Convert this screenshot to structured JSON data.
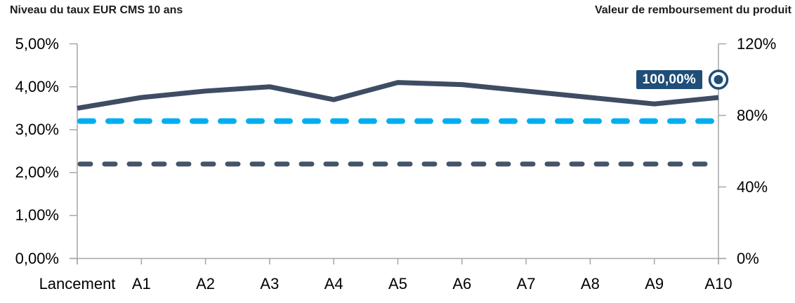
{
  "titles": {
    "left": "Niveau du taux EUR CMS 10 ans",
    "right": "Valeur de remboursement du produit"
  },
  "chart_data": {
    "type": "line",
    "categories": [
      "Lancement",
      "A1",
      "A2",
      "A3",
      "A4",
      "A5",
      "A6",
      "A7",
      "A8",
      "A9",
      "A10"
    ],
    "series": [
      {
        "id": "eur-cms-10y-rate-line",
        "name": "Niveau du taux EUR CMS 10 ans",
        "axis": "left",
        "style": "solid",
        "color": "#3E4C64",
        "values": [
          3.5,
          3.75,
          3.9,
          4.0,
          3.7,
          4.1,
          4.05,
          3.9,
          3.75,
          3.6,
          3.75
        ]
      },
      {
        "id": "upper-barrier-dashed-line",
        "axis": "left",
        "style": "dashed-long",
        "color": "#00AEEF",
        "constant_value": 3.2
      },
      {
        "id": "lower-barrier-dashed-line",
        "axis": "left",
        "style": "dashed-short",
        "color": "#44546A",
        "constant_value": 2.2
      }
    ],
    "left_axis": {
      "min": 0,
      "max": 5,
      "tick_values": [
        0,
        1,
        2,
        3,
        4,
        5
      ],
      "tick_labels": [
        "0,00%",
        "1,00%",
        "2,00%",
        "3,00%",
        "4,00%",
        "5,00%"
      ]
    },
    "right_axis": {
      "min": 0,
      "max": 120,
      "tick_values": [
        0,
        40,
        80,
        120
      ],
      "tick_labels": [
        "0%",
        "40%",
        "80%",
        "120%"
      ]
    },
    "marker": {
      "category_index": 10,
      "axis": "right",
      "value": 100,
      "label": "100,00%",
      "color": "#1F4E79",
      "label_text_color": "#FFFFFF"
    },
    "grid": false,
    "legend": "none",
    "colors": {
      "axis_line": "#A6A6A6",
      "tick_text": "#000000",
      "title_text": "#1D1D1B"
    }
  }
}
